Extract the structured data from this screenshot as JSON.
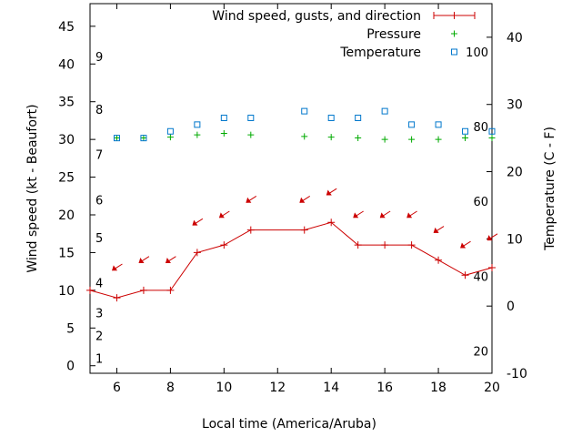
{
  "chart_data": {
    "type": "line",
    "title": "",
    "xlabel": "Local time (America/Aruba)",
    "ylabel": "Wind speed (kt - Beaufort)",
    "y2label": "Temperature (C - F)",
    "xlim": [
      5,
      20
    ],
    "ylim": [
      -1,
      48
    ],
    "y2lim": [
      -10,
      45
    ],
    "x_ticks": [
      6,
      8,
      10,
      12,
      14,
      16,
      18,
      20
    ],
    "y_ticks": [
      0,
      5,
      10,
      15,
      20,
      25,
      30,
      35,
      40,
      45
    ],
    "y2_ticks": [
      -10,
      0,
      10,
      20,
      30,
      40
    ],
    "beaufort_labels": [
      {
        "label": "1",
        "kt": 1
      },
      {
        "label": "2",
        "kt": 4
      },
      {
        "label": "3",
        "kt": 7
      },
      {
        "label": "4",
        "kt": 11
      },
      {
        "label": "5",
        "kt": 17
      },
      {
        "label": "6",
        "kt": 22
      },
      {
        "label": "7",
        "kt": 28
      },
      {
        "label": "8",
        "kt": 34
      },
      {
        "label": "9",
        "kt": 41
      }
    ],
    "fahrenheit_labels": [
      {
        "label": "20",
        "c": -6.7
      },
      {
        "label": "40",
        "c": 4.4
      },
      {
        "label": "60",
        "c": 15.6
      },
      {
        "label": "80",
        "c": 26.7
      },
      {
        "label": "100",
        "c": 37.8
      }
    ],
    "legend": {
      "position": "top-right",
      "entries": [
        {
          "label": "Wind speed, gusts, and direction",
          "color": "#cc0000",
          "marker": "line-plus"
        },
        {
          "label": "Pressure",
          "color": "#00aa00",
          "marker": "plus"
        },
        {
          "label": "Temperature",
          "color": "#0077cc",
          "marker": "square"
        }
      ]
    },
    "series": [
      {
        "name": "Wind speed, gusts, and direction",
        "color": "#cc0000",
        "x": [
          5,
          6,
          7,
          8,
          9,
          10,
          11,
          13,
          14,
          15,
          16,
          17,
          18,
          19,
          20
        ],
        "values": [
          10,
          9,
          10,
          10,
          15,
          16,
          18,
          18,
          19,
          16,
          16,
          16,
          14,
          12,
          13
        ],
        "direction_arrows": [
          {
            "x": 6,
            "y": 13
          },
          {
            "x": 7,
            "y": 14
          },
          {
            "x": 8,
            "y": 14
          },
          {
            "x": 9,
            "y": 19
          },
          {
            "x": 10,
            "y": 20
          },
          {
            "x": 11,
            "y": 22
          },
          {
            "x": 13,
            "y": 22
          },
          {
            "x": 14,
            "y": 23
          },
          {
            "x": 15,
            "y": 20
          },
          {
            "x": 16,
            "y": 20
          },
          {
            "x": 17,
            "y": 20
          },
          {
            "x": 18,
            "y": 18
          },
          {
            "x": 19,
            "y": 16
          },
          {
            "x": 20,
            "y": 17
          }
        ]
      },
      {
        "name": "Pressure",
        "color": "#00aa00",
        "x": [
          6,
          7,
          8,
          9,
          10,
          11,
          13,
          14,
          15,
          16,
          17,
          18,
          19,
          20
        ],
        "values": [
          30.2,
          30.2,
          30.3,
          30.6,
          30.8,
          30.6,
          30.4,
          30.3,
          30.2,
          30.0,
          30.0,
          30.0,
          30.2,
          30.2
        ]
      },
      {
        "name": "Temperature",
        "color": "#0077cc",
        "axis": "y2",
        "x": [
          6,
          7,
          8,
          9,
          10,
          11,
          13,
          14,
          15,
          16,
          17,
          18,
          19,
          20
        ],
        "values": [
          25,
          25,
          26,
          27,
          28,
          28,
          29,
          28,
          28,
          29,
          27,
          27,
          26,
          26
        ]
      }
    ]
  }
}
